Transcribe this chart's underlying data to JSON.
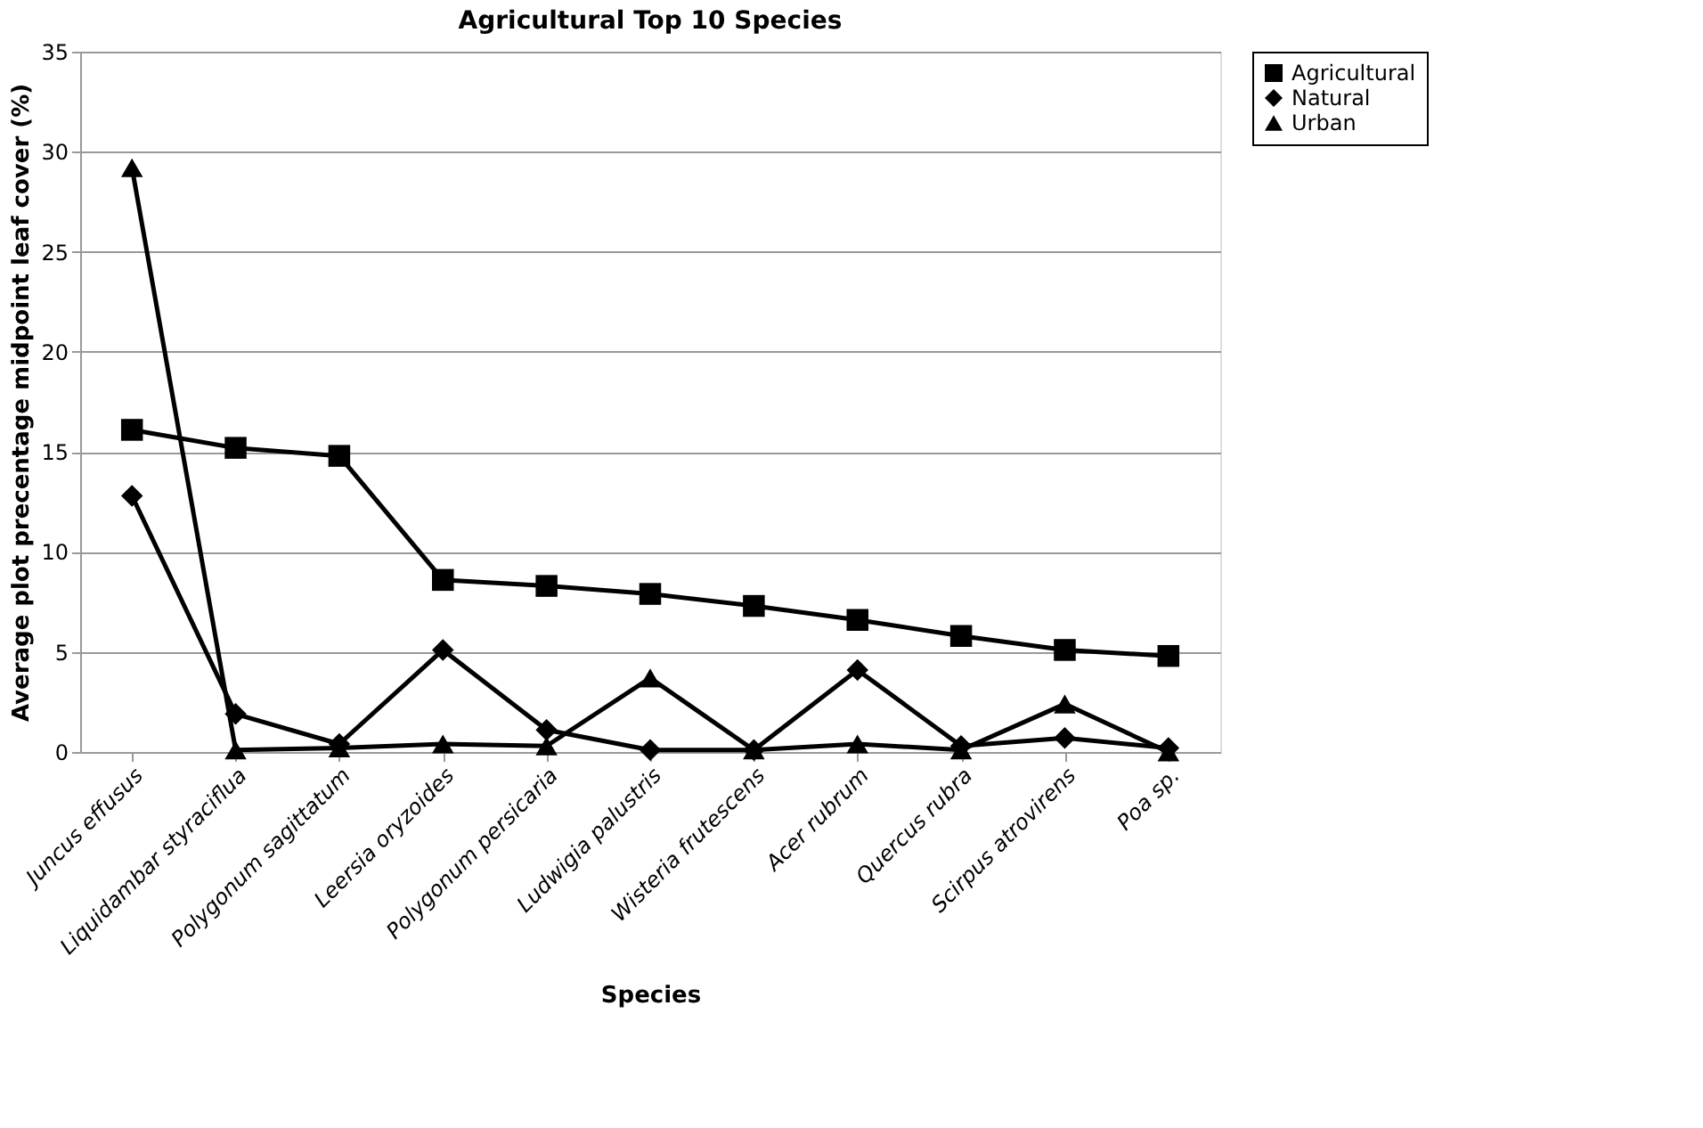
{
  "chart_data": {
    "type": "line",
    "title": "Agricultural Top 10 Species",
    "xlabel": "Species",
    "ylabel": "Average plot precentage midpoint leaf cover (%)",
    "categories": [
      "Juncus effusus",
      "Liquidambar styraciflua",
      "Polygonum sagittatum",
      "Leersia oryzoides",
      "Polygonum persicaria",
      "Ludwigia palustris",
      "Wisteria frutescens",
      "Acer rubrum",
      "Quercus rubra",
      "Scirpus atrovirens",
      "Poa sp."
    ],
    "series": [
      {
        "name": "Agricultural",
        "color": "#000000",
        "marker": "square",
        "values": [
          16.1,
          15.2,
          14.8,
          8.6,
          8.3,
          7.9,
          7.3,
          6.6,
          5.8,
          5.1,
          4.8
        ]
      },
      {
        "name": "Natural",
        "color": "#000000",
        "marker": "diamond",
        "values": [
          12.8,
          1.9,
          0.4,
          5.1,
          1.1,
          0.1,
          0.1,
          4.1,
          0.3,
          0.7,
          0.2
        ]
      },
      {
        "name": "Urban",
        "color": "#000000",
        "marker": "triangle",
        "values": [
          29.2,
          0.1,
          0.2,
          0.4,
          0.3,
          3.7,
          0.1,
          0.4,
          0.1,
          2.4,
          0.0
        ]
      }
    ],
    "ylim": [
      0,
      35
    ],
    "yticks": [
      0,
      5,
      10,
      15,
      20,
      25,
      30,
      35
    ],
    "grid": "y",
    "legend": "right",
    "line_style": "solid"
  }
}
